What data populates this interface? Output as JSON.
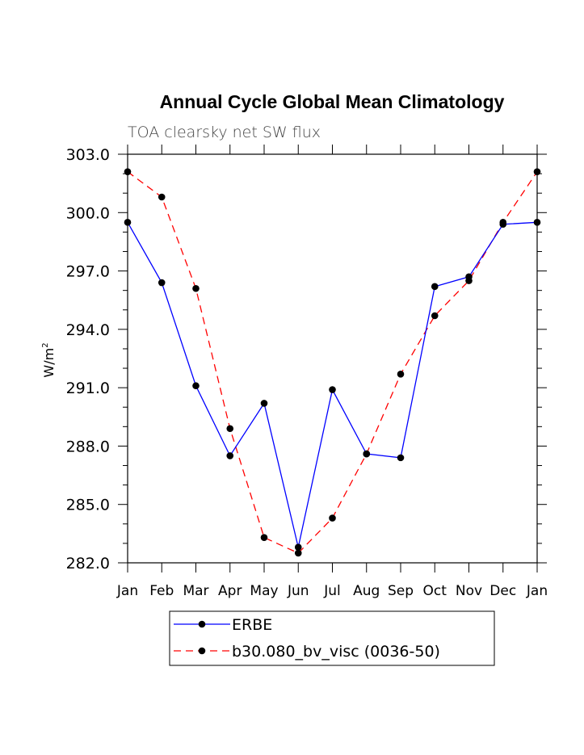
{
  "chart_data": {
    "type": "line",
    "title": "Annual Cycle Global Mean Climatology",
    "subtitle": "TOA clearsky net SW flux",
    "ylabel": "W/m",
    "ylabel_superscript": "2",
    "xlabel": "",
    "categories": [
      "Jan",
      "Feb",
      "Mar",
      "Apr",
      "May",
      "Jun",
      "Jul",
      "Aug",
      "Sep",
      "Oct",
      "Nov",
      "Dec",
      "Jan"
    ],
    "ylim": [
      282.0,
      303.0
    ],
    "yticks": [
      "282.0",
      "285.0",
      "288.0",
      "291.0",
      "294.0",
      "297.0",
      "300.0",
      "303.0"
    ],
    "series": [
      {
        "name": "ERBE",
        "color": "#0000ff",
        "dash": "solid",
        "values": [
          299.5,
          296.4,
          291.1,
          287.5,
          290.2,
          282.8,
          290.9,
          287.6,
          287.4,
          296.2,
          296.7,
          299.4,
          299.5
        ]
      },
      {
        "name": "b30.080_bv_visc (0036-50)",
        "color": "#ff0000",
        "dash": "dashed",
        "values": [
          302.1,
          300.8,
          296.1,
          288.9,
          283.3,
          282.5,
          284.3,
          287.6,
          291.7,
          294.7,
          296.5,
          299.5,
          302.1
        ]
      }
    ],
    "legend_position": "bottom"
  }
}
